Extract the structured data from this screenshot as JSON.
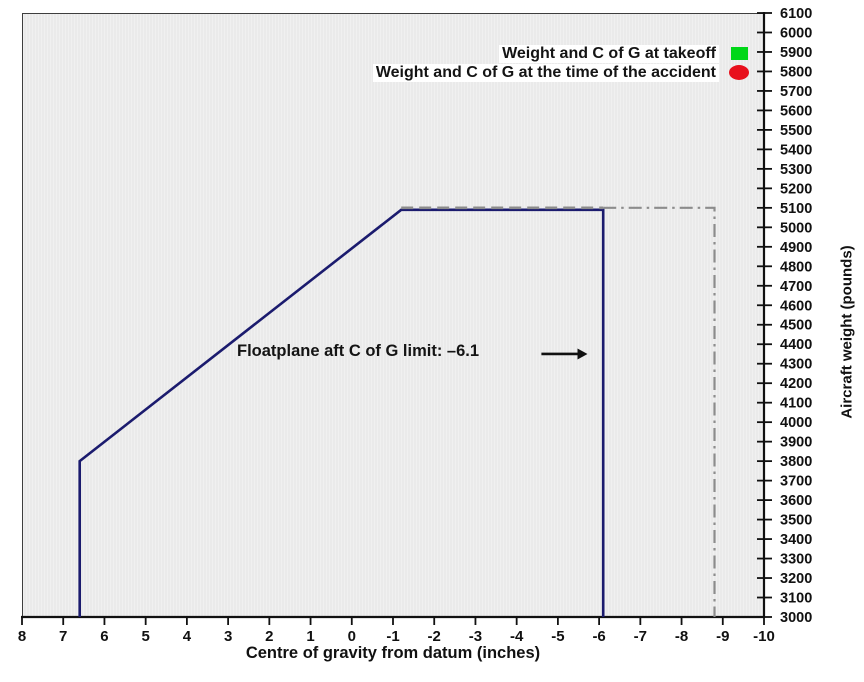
{
  "chart_data": {
    "type": "line",
    "title": "",
    "xlabel": "Centre of gravity from datum (inches)",
    "ylabel": "Aircraft weight (pounds)",
    "x_axis": {
      "left_value": 8,
      "right_value": -10,
      "step": 1,
      "reversed": true,
      "tick_labels": [
        "8",
        "7",
        "6",
        "5",
        "4",
        "3",
        "2",
        "1",
        "0",
        "-1",
        "-2",
        "-3",
        "-4",
        "-5",
        "-6",
        "-7",
        "-8",
        "-9",
        "-10"
      ]
    },
    "y_axis": {
      "top_value": 6100,
      "bottom_value": 3000,
      "step": 100,
      "tick_labels": [
        "6100",
        "6000",
        "5900",
        "5800",
        "5700",
        "5600",
        "5500",
        "5400",
        "5300",
        "5200",
        "5100",
        "5000",
        "4900",
        "4800",
        "4700",
        "4600",
        "4500",
        "4400",
        "4300",
        "4200",
        "4100",
        "4000",
        "3900",
        "3800",
        "3700",
        "3600",
        "3500",
        "3400",
        "3300",
        "3200",
        "3100",
        "3000"
      ]
    },
    "series": [
      {
        "name": "floatplane-envelope",
        "style": "solid",
        "color": "#1b1b6e",
        "width": 2.6,
        "points": [
          [
            6.6,
            3000
          ],
          [
            6.6,
            3800
          ],
          [
            -1.2,
            5090
          ],
          [
            -6.1,
            5090
          ],
          [
            -6.1,
            3000
          ]
        ]
      },
      {
        "name": "extended-envelope-dashed",
        "style": "dashed",
        "color": "#8c8c8c",
        "width": 2.6,
        "points": [
          [
            -1.2,
            5100
          ],
          [
            -6.1,
            5100
          ]
        ]
      },
      {
        "name": "extended-envelope-dashdot",
        "style": "dashdot",
        "color": "#8c8c8c",
        "width": 2.2,
        "points": [
          [
            -6.1,
            5100
          ],
          [
            -8.8,
            5100
          ],
          [
            -8.8,
            3000
          ]
        ]
      }
    ],
    "legend": [
      {
        "label": "Weight and C of G at takeoff",
        "marker": "square",
        "color": "#00d718"
      },
      {
        "label": "Weight and C of G at the time of the accident",
        "marker": "circle",
        "color": "#e8101c"
      }
    ],
    "annotation": {
      "text": "Floatplane aft C of G limit: –6.1",
      "arrow_from_x": -4.6,
      "arrow_to_x": -5.5,
      "arrow_y": 4350
    },
    "colors": {
      "plot_background": "#eaeaea",
      "frame": "#3e3e3e",
      "axis": "#111111",
      "envelope_line": "#1b1b6e",
      "extension_line": "#8c8c8c"
    },
    "layout_hints": {
      "grid": false,
      "legend_position": "top-right",
      "y_axis_side": "right"
    }
  }
}
